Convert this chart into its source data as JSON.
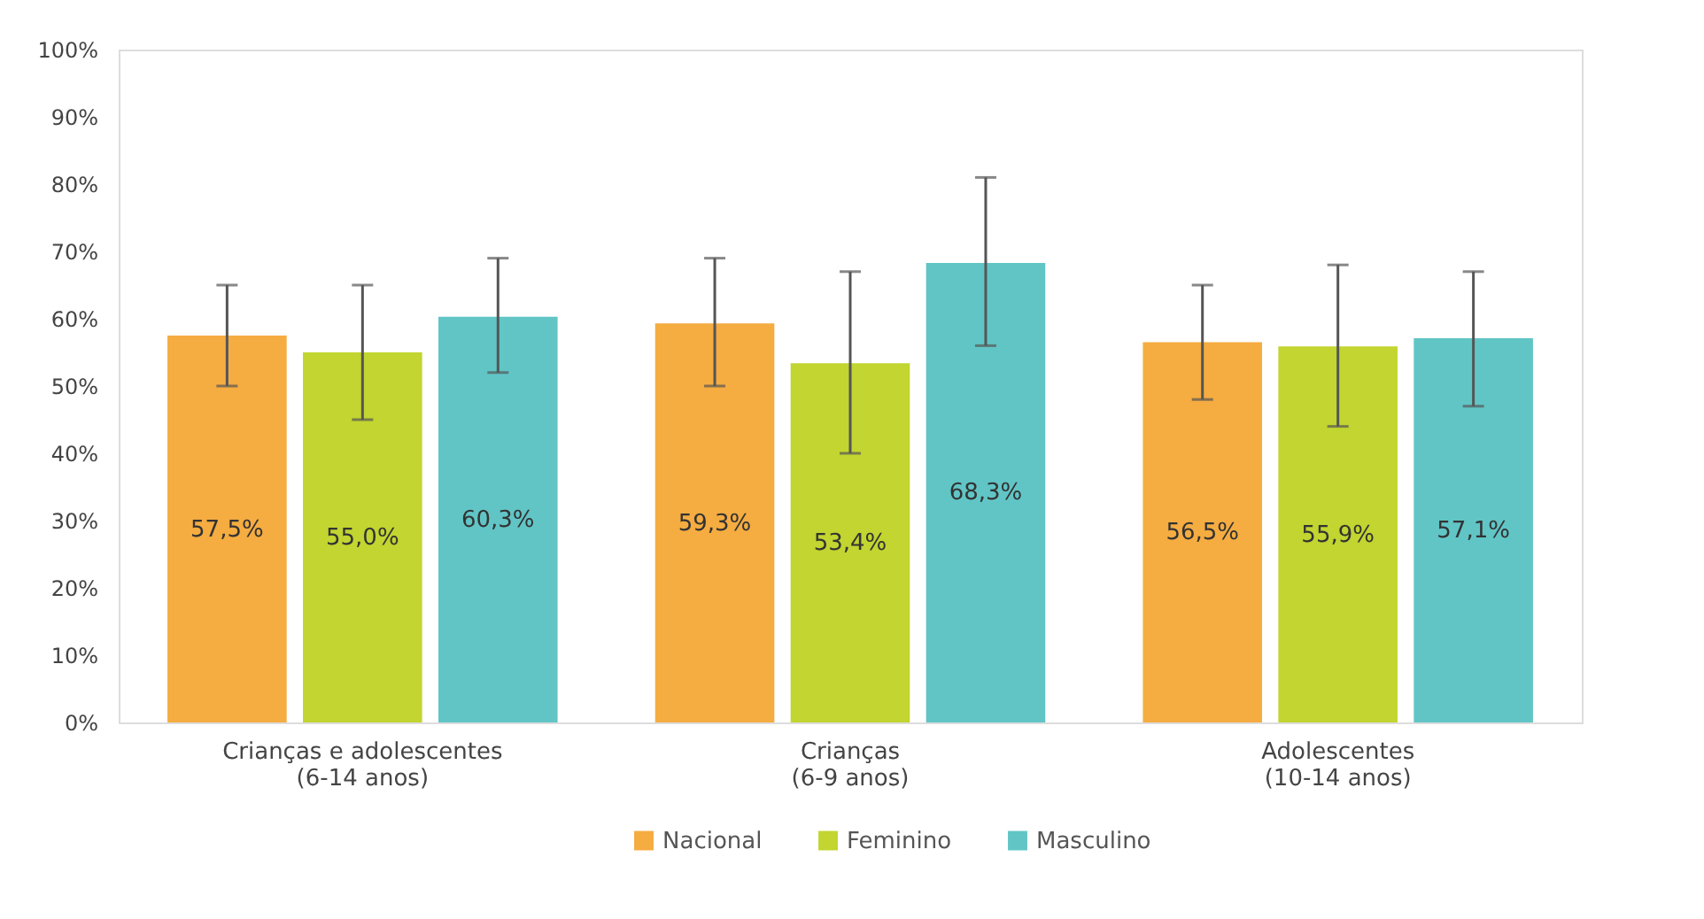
{
  "chart_data": {
    "type": "bar",
    "categories": [
      "Crianças e adolescentes\n(6-14 anos)",
      "Crianças\n(6-9 anos)",
      "Adolescentes\n(10-14 anos)"
    ],
    "series": [
      {
        "name": "Nacional",
        "color": "#f5ac41",
        "values": [
          57.5,
          59.3,
          56.5
        ],
        "errors": [
          [
            50,
            65
          ],
          [
            50,
            69
          ],
          [
            48,
            65
          ]
        ],
        "value_labels": [
          "57,5%",
          "59,3%",
          "56,5%"
        ]
      },
      {
        "name": "Feminino",
        "color": "#c2d530",
        "values": [
          55.0,
          53.4,
          55.9
        ],
        "errors": [
          [
            45,
            65
          ],
          [
            40,
            67
          ],
          [
            44,
            68
          ]
        ],
        "value_labels": [
          "55,0%",
          "53,4%",
          "55,9%"
        ]
      },
      {
        "name": "Masculino",
        "color": "#61c5c6",
        "values": [
          60.3,
          68.3,
          57.1
        ],
        "errors": [
          [
            52,
            69
          ],
          [
            56,
            81
          ],
          [
            47,
            67
          ]
        ],
        "value_labels": [
          "60,3%",
          "68,3%",
          "57,1%"
        ]
      }
    ],
    "ylim": [
      0,
      100
    ],
    "yticks": [
      {
        "value": 0,
        "label": "0%"
      },
      {
        "value": 10,
        "label": "10%"
      },
      {
        "value": 20,
        "label": "20%"
      },
      {
        "value": 30,
        "label": "30%"
      },
      {
        "value": 40,
        "label": "40%"
      },
      {
        "value": 50,
        "label": "50%"
      },
      {
        "value": 60,
        "label": "60%"
      },
      {
        "value": 70,
        "label": "70%"
      },
      {
        "value": 80,
        "label": "80%"
      },
      {
        "value": 90,
        "label": "90%"
      },
      {
        "value": 100,
        "label": "100%"
      }
    ],
    "grid": false,
    "legend": "bottom"
  }
}
